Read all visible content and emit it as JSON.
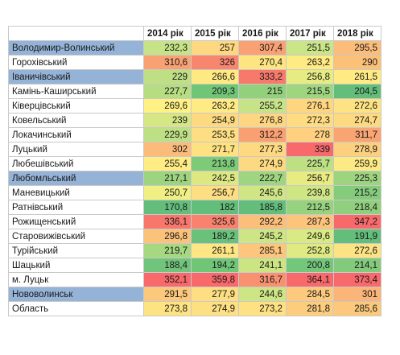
{
  "table": {
    "headers": [
      "",
      "2014 рік",
      "2015 рік",
      "2016 рік",
      "2017 рік",
      "2018 рік"
    ],
    "rows": [
      {
        "name": "Володимир-Волинський",
        "highlight": "#95b3d7",
        "values": [
          "232,3",
          "257",
          "307,4",
          "251,5",
          "295,5"
        ],
        "colors": [
          "#c6e487",
          "#fed880",
          "#f9a174",
          "#cae488",
          "#fcbc7a"
        ]
      },
      {
        "name": "Горохівський",
        "highlight": "",
        "values": [
          "310,6",
          "326",
          "270,4",
          "263,2",
          "290"
        ],
        "colors": [
          "#f8a273",
          "#f8866f",
          "#fee582",
          "#ffeb84",
          "#fbc179"
        ]
      },
      {
        "name": "Іваничівський",
        "highlight": "#95b3d7",
        "values": [
          "229",
          "266,6",
          "333,2",
          "256,8",
          "261,5"
        ],
        "colors": [
          "#bedf84",
          "#fee983",
          "#f7796c",
          "#e6eb82",
          "#ffea84"
        ]
      },
      {
        "name": "Камінь-Каширський",
        "highlight": "",
        "values": [
          "227,7",
          "209,3",
          "215",
          "215,5",
          "204,5"
        ],
        "colors": [
          "#b6dd82",
          "#70c677",
          "#92d07c",
          "#9ed57f",
          "#63be7b"
        ]
      },
      {
        "name": "Ківерцівський",
        "highlight": "",
        "values": [
          "269,6",
          "263,2",
          "255,2",
          "276,1",
          "272,6"
        ],
        "colors": [
          "#fff183",
          "#ffeb84",
          "#c6e487",
          "#ffd680",
          "#fde383"
        ]
      },
      {
        "name": "Ковельський",
        "highlight": "",
        "values": [
          "239",
          "254,9",
          "276,8",
          "272,3",
          "274,7"
        ],
        "colors": [
          "#d5e784",
          "#fdd981",
          "#fed580",
          "#ffdb81",
          "#fdda81"
        ]
      },
      {
        "name": "Локачинський",
        "highlight": "",
        "values": [
          "229,9",
          "253,5",
          "312,2",
          "278",
          "311,7"
        ],
        "colors": [
          "#bee084",
          "#fdde82",
          "#f9a073",
          "#ffd080",
          "#f9a473"
        ]
      },
      {
        "name": "Луцький",
        "highlight": "",
        "values": [
          "302",
          "271,7",
          "277,3",
          "339",
          "278,9"
        ],
        "colors": [
          "#fbbb7b",
          "#fee282",
          "#fdd981",
          "#f8696b",
          "#fcd07f"
        ]
      },
      {
        "name": "Любешівський",
        "highlight": "",
        "values": [
          "255,4",
          "213,8",
          "274,9",
          "225,7",
          "259,9"
        ],
        "colors": [
          "#ffec84",
          "#7dca79",
          "#fdd981",
          "#bde083",
          "#fdea84"
        ]
      },
      {
        "name": "Любомльський",
        "highlight": "#95b3d7",
        "values": [
          "217,1",
          "242,5",
          "222,7",
          "256,7",
          "225,3"
        ],
        "colors": [
          "#9dd480",
          "#dde882",
          "#9fd580",
          "#e7eb82",
          "#9ed480"
        ]
      },
      {
        "name": "Маневицький",
        "highlight": "",
        "values": [
          "250,7",
          "256,7",
          "245,6",
          "239,8",
          "215,2"
        ],
        "colors": [
          "#f0ef83",
          "#fdde82",
          "#d0e684",
          "#cfe684",
          "#85cb7c"
        ]
      },
      {
        "name": "Ратнівський",
        "highlight": "",
        "values": [
          "170,8",
          "182",
          "185,8",
          "212,5",
          "218,4"
        ],
        "colors": [
          "#63be7b",
          "#63be7b",
          "#63be7b",
          "#97d37e",
          "#8fcf7d"
        ]
      },
      {
        "name": "Рожищенський",
        "highlight": "",
        "values": [
          "336,1",
          "325,6",
          "292,2",
          "287,3",
          "347,2"
        ],
        "colors": [
          "#f8776d",
          "#f8826e",
          "#fbbf7a",
          "#fdc57c",
          "#f8696b"
        ]
      },
      {
        "name": "Старовижівський",
        "highlight": "",
        "values": [
          "296,8",
          "189,2",
          "245,2",
          "249,6",
          "191,9"
        ],
        "colors": [
          "#fbc27a",
          "#6ac17a",
          "#cde584",
          "#d9e983",
          "#63be7b"
        ]
      },
      {
        "name": "Турійський",
        "highlight": "",
        "values": [
          "219,7",
          "261,1",
          "285,1",
          "252,8",
          "272,6"
        ],
        "colors": [
          "#a5d881",
          "#fee683",
          "#fdc67c",
          "#dfea83",
          "#fde383"
        ]
      },
      {
        "name": "Шацький",
        "highlight": "",
        "values": [
          "188,4",
          "194,2",
          "241,1",
          "200,8",
          "214,1"
        ],
        "colors": [
          "#71c47b",
          "#70c677",
          "#cbe583",
          "#73c77b",
          "#82ca7c"
        ]
      },
      {
        "name": "м. Луцьк",
        "highlight": "",
        "values": [
          "352,1",
          "359,8",
          "316,7",
          "364,1",
          "373,4"
        ],
        "colors": [
          "#f8696b",
          "#f8696b",
          "#f8916f",
          "#f8696b",
          "#f8696b"
        ]
      },
      {
        "name": "Нововолинськ",
        "highlight": "#95b3d7",
        "values": [
          "291,5",
          "277,9",
          "244,6",
          "284,5",
          "301"
        ],
        "colors": [
          "#fcc87c",
          "#fdde82",
          "#cde584",
          "#fdca7d",
          "#fbb578"
        ]
      },
      {
        "name": "Область",
        "highlight": "",
        "values": [
          "273,8",
          "274,9",
          "273,2",
          "281,8",
          "285,6"
        ],
        "colors": [
          "#fee383",
          "#fde082",
          "#fee183",
          "#fdcd7e",
          "#fcc97c"
        ]
      }
    ]
  }
}
